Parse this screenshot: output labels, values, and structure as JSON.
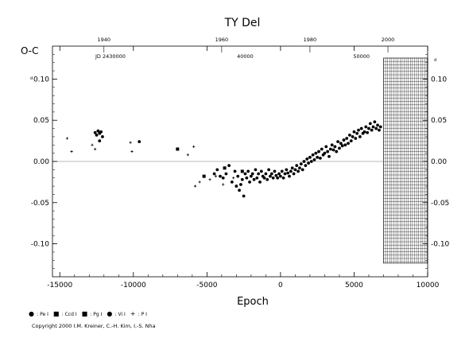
{
  "chart_data": {
    "type": "scatter",
    "title": "TY Del",
    "xlabel": "Epoch",
    "ylabel": "O-C",
    "xlim": [
      -15500,
      10000
    ],
    "ylim": [
      -0.14,
      0.14
    ],
    "x_ticks": [
      "-15000",
      "-10000",
      "-5000",
      "0",
      "5000",
      "10000"
    ],
    "y_ticks_left": [
      "0.10",
      "0.05",
      "0.00",
      "-0.05",
      "-0.10"
    ],
    "y_ticks_right": [
      "0.10",
      "0.05",
      "0.00",
      "-0.05",
      "-0.10"
    ],
    "y_unit_mark": "d",
    "top_year_ticks": [
      "1940",
      "1960",
      "1980",
      "2000"
    ],
    "top_year_epochs": [
      -12000,
      -4000,
      2000,
      7300
    ],
    "jd_label": "JD 2430000",
    "jd_ticks": [
      "40000",
      "50000"
    ],
    "jd_epochs": [
      -2400,
      5500
    ],
    "hatched_region_from_epoch": 7000,
    "grid": false,
    "series": [
      {
        "name": "",
        "symbol": "circle",
        "points": [
          [
            -12600,
            0.035
          ],
          [
            -12500,
            0.032
          ],
          [
            -12400,
            0.037
          ],
          [
            -12300,
            0.034
          ],
          [
            -12200,
            0.036
          ],
          [
            -12100,
            0.03
          ],
          [
            -12300,
            0.025
          ],
          [
            -9600,
            0.024
          ],
          [
            -4500,
            -0.015
          ],
          [
            -4300,
            -0.01
          ],
          [
            -4100,
            -0.018
          ],
          [
            -3900,
            -0.02
          ],
          [
            -3700,
            -0.015
          ],
          [
            -3500,
            -0.005
          ],
          [
            -3300,
            -0.025
          ],
          [
            -3100,
            -0.012
          ],
          [
            -3000,
            -0.03
          ],
          [
            -2900,
            -0.018
          ],
          [
            -2800,
            -0.035
          ],
          [
            -2700,
            -0.028
          ],
          [
            -2600,
            -0.022
          ],
          [
            -2500,
            -0.042
          ],
          [
            -2400,
            -0.015
          ],
          [
            -2300,
            -0.02
          ],
          [
            -2200,
            -0.012
          ],
          [
            -2100,
            -0.025
          ],
          [
            -2000,
            -0.018
          ],
          [
            -1900,
            -0.015
          ],
          [
            -1800,
            -0.022
          ],
          [
            -1700,
            -0.01
          ],
          [
            -1600,
            -0.02
          ],
          [
            -1500,
            -0.015
          ],
          [
            -1400,
            -0.025
          ],
          [
            -1300,
            -0.012
          ],
          [
            -1200,
            -0.018
          ],
          [
            -1100,
            -0.02
          ],
          [
            -1000,
            -0.015
          ],
          [
            -900,
            -0.022
          ],
          [
            -800,
            -0.01
          ],
          [
            -700,
            -0.018
          ],
          [
            -600,
            -0.015
          ],
          [
            -500,
            -0.02
          ],
          [
            -400,
            -0.012
          ],
          [
            -300,
            -0.017
          ],
          [
            -200,
            -0.02
          ],
          [
            -100,
            -0.015
          ],
          [
            0,
            -0.018
          ],
          [
            100,
            -0.012
          ],
          [
            200,
            -0.02
          ],
          [
            300,
            -0.015
          ],
          [
            400,
            -0.01
          ],
          [
            500,
            -0.014
          ],
          [
            600,
            -0.018
          ],
          [
            700,
            -0.012
          ],
          [
            800,
            -0.008
          ],
          [
            900,
            -0.015
          ],
          [
            1000,
            -0.01
          ],
          [
            1100,
            -0.005
          ],
          [
            1200,
            -0.012
          ],
          [
            1300,
            -0.008
          ],
          [
            1400,
            -0.003
          ],
          [
            1500,
            -0.01
          ],
          [
            1600,
            0.0
          ],
          [
            1700,
            -0.005
          ],
          [
            1800,
            0.003
          ],
          [
            1900,
            -0.002
          ],
          [
            2000,
            0.005
          ],
          [
            2100,
            0.0
          ],
          [
            2200,
            0.008
          ],
          [
            2300,
            0.002
          ],
          [
            2400,
            0.01
          ],
          [
            2500,
            0.005
          ],
          [
            2600,
            0.012
          ],
          [
            2700,
            0.004
          ],
          [
            2800,
            0.015
          ],
          [
            2900,
            0.008
          ],
          [
            3000,
            0.01
          ],
          [
            3100,
            0.018
          ],
          [
            3200,
            0.012
          ],
          [
            3300,
            0.006
          ],
          [
            3400,
            0.015
          ],
          [
            3500,
            0.02
          ],
          [
            3600,
            0.014
          ],
          [
            3700,
            0.018
          ],
          [
            3800,
            0.012
          ],
          [
            3900,
            0.024
          ],
          [
            4000,
            0.016
          ],
          [
            4100,
            0.022
          ],
          [
            4200,
            0.019
          ],
          [
            4300,
            0.026
          ],
          [
            4400,
            0.02
          ],
          [
            4500,
            0.028
          ],
          [
            4600,
            0.022
          ],
          [
            4700,
            0.032
          ],
          [
            4800,
            0.025
          ],
          [
            4900,
            0.03
          ],
          [
            5000,
            0.036
          ],
          [
            5100,
            0.028
          ],
          [
            5200,
            0.034
          ],
          [
            5300,
            0.038
          ],
          [
            5400,
            0.03
          ],
          [
            5500,
            0.04
          ],
          [
            5600,
            0.034
          ],
          [
            5700,
            0.036
          ],
          [
            5800,
            0.042
          ],
          [
            5900,
            0.035
          ],
          [
            6000,
            0.04
          ],
          [
            6100,
            0.046
          ],
          [
            6200,
            0.038
          ],
          [
            6300,
            0.042
          ],
          [
            6400,
            0.048
          ],
          [
            6500,
            0.04
          ],
          [
            6600,
            0.044
          ],
          [
            6700,
            0.038
          ],
          [
            6800,
            0.042
          ]
        ]
      },
      {
        "name": "",
        "symbol": "square",
        "points": [
          [
            -7000,
            0.015
          ],
          [
            -5200,
            -0.018
          ],
          [
            -3800,
            -0.008
          ],
          [
            -2600,
            -0.012
          ]
        ]
      },
      {
        "name": "",
        "symbol": "plus",
        "points": [
          [
            -14500,
            0.028
          ],
          [
            -14200,
            0.012
          ],
          [
            -12800,
            0.02
          ],
          [
            -12600,
            0.015
          ],
          [
            -10200,
            0.023
          ],
          [
            -10100,
            0.012
          ],
          [
            -6300,
            0.008
          ],
          [
            -5900,
            0.018
          ],
          [
            -5800,
            -0.03
          ],
          [
            -5500,
            -0.025
          ],
          [
            -4800,
            -0.022
          ],
          [
            -4400,
            -0.018
          ],
          [
            -3900,
            -0.028
          ],
          [
            -3200,
            -0.02
          ]
        ]
      }
    ]
  },
  "legend": [
    {
      "symbol": "●",
      "label": " : Pe I"
    },
    {
      "symbol": "■",
      "label": " : Ccd I"
    },
    {
      "symbol": "■",
      "label": " : Pg I"
    },
    {
      "symbol": "●",
      "label": " : Vi I"
    },
    {
      "symbol": "+",
      "label": " : P I"
    }
  ],
  "copyright": "Copyright 2000 I.M. Kreiner, C.-H. Kim, I.-S. Nha"
}
